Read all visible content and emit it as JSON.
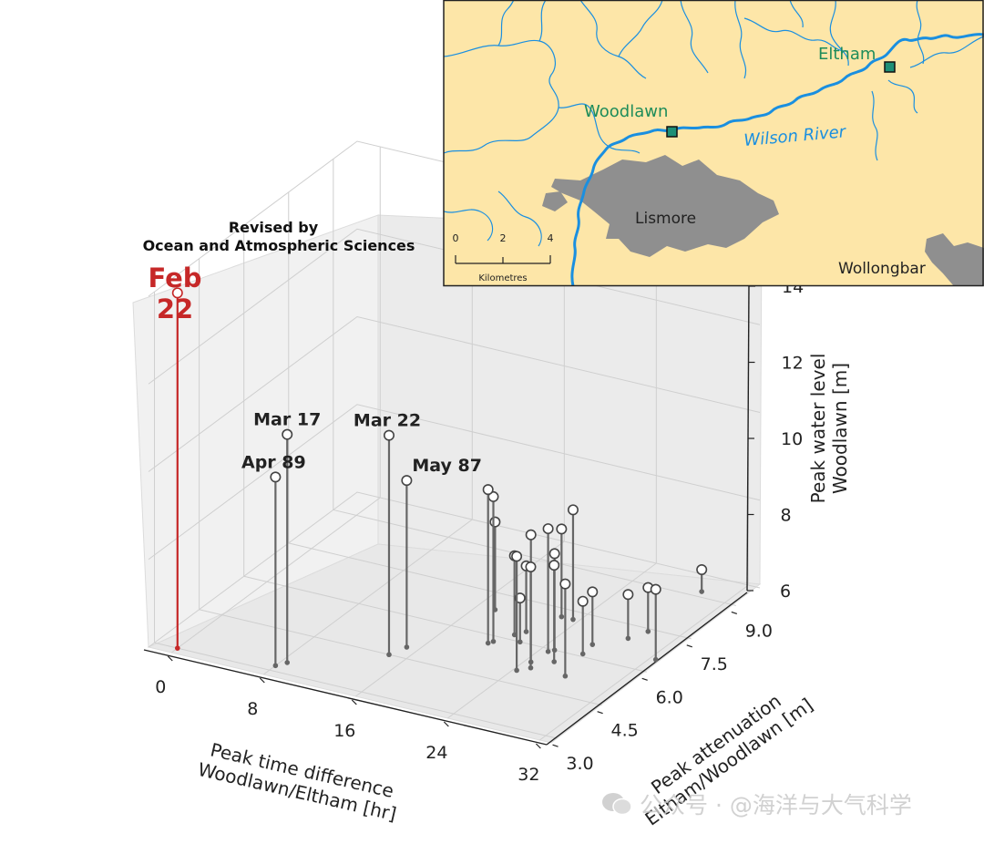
{
  "chart_data": {
    "type": "scatter",
    "subtype": "3d-stem",
    "header": [
      "Revised by",
      "Ocean and Atmospheric Sciences"
    ],
    "xlabel": [
      "Peak time difference",
      "Woodlawn/Eltham [hr]"
    ],
    "ylabel": [
      "Peak attenuation",
      "Eltham/Woodlawn [m]"
    ],
    "zlabel": [
      "Peak water level",
      "Woodlawn [m]"
    ],
    "xlim": [
      -2,
      33
    ],
    "ylim": [
      2.8,
      9.8
    ],
    "zlim": [
      6,
      14
    ],
    "x_ticks": [
      "0",
      "8",
      "16",
      "24",
      "32"
    ],
    "y_ticks": [
      "3.0",
      "4.5",
      "6.0",
      "7.5",
      "9.0"
    ],
    "z_ticks": [
      "6",
      "8",
      "10",
      "12",
      "14"
    ],
    "grid": true,
    "highlight": {
      "label": [
        "Feb",
        "22"
      ],
      "color": "#c62828",
      "point": {
        "x": 0,
        "y": 3.0,
        "z": 14.1
      }
    },
    "annotations": [
      {
        "label": "Mar 17",
        "x": 8.5,
        "y": 3.4,
        "z": 11.2
      },
      {
        "label": "Apr 89",
        "x": 8,
        "y": 3.2,
        "z": 10.3
      },
      {
        "label": "Mar 22",
        "x": 14.5,
        "y": 4.5,
        "z": 11.0
      },
      {
        "label": "May 87",
        "x": 15,
        "y": 4.9,
        "z": 9.8
      }
    ],
    "points": [
      {
        "x": 20,
        "y": 5.7,
        "z": 9.5
      },
      {
        "x": 20.2,
        "y": 5.8,
        "z": 9.3
      },
      {
        "x": 17.5,
        "y": 6.9,
        "z": 8.0
      },
      {
        "x": 21,
        "y": 6.2,
        "z": 7.8
      },
      {
        "x": 21.5,
        "y": 6.4,
        "z": 7.5
      },
      {
        "x": 22,
        "y": 6.0,
        "z": 7.0
      },
      {
        "x": 22.5,
        "y": 7.2,
        "z": 8.0
      },
      {
        "x": 23.5,
        "y": 7.2,
        "z": 8.5
      },
      {
        "x": 24.3,
        "y": 5.0,
        "z": 8.6
      },
      {
        "x": 24.5,
        "y": 5.4,
        "z": 8.9
      },
      {
        "x": 24.7,
        "y": 5.9,
        "z": 8.8
      },
      {
        "x": 25,
        "y": 6.0,
        "z": 8.2
      },
      {
        "x": 25,
        "y": 5.2,
        "z": 8.3
      },
      {
        "x": 26,
        "y": 5.6,
        "z": 8.2
      },
      {
        "x": 27,
        "y": 6.5,
        "z": 7.2
      },
      {
        "x": 27.2,
        "y": 6.1,
        "z": 7.2
      },
      {
        "x": 28,
        "y": 5.2,
        "z": 8.1
      },
      {
        "x": 28.8,
        "y": 7.0,
        "z": 7.0
      },
      {
        "x": 29.5,
        "y": 7.4,
        "z": 7.0
      },
      {
        "x": 29.5,
        "y": 9.2,
        "z": 6.5
      },
      {
        "x": 32.5,
        "y": 6.5,
        "z": 7.6
      }
    ]
  },
  "map": {
    "labels": {
      "eltham": "Eltham",
      "woodlawn": "Woodlawn",
      "river": "Wilson River",
      "lismore": "Lismore",
      "wollongbar": "Wollongbar"
    },
    "scale": {
      "ticks": [
        "0",
        "2",
        "4"
      ],
      "unit": "Kilometres"
    },
    "colors": {
      "land": "#fde6a8",
      "river": "#1a8fe0",
      "urban": "#8f8f8f",
      "site": "#1e8f76",
      "site_text": "#1e8c5a"
    }
  },
  "watermark": "公众号 · @海洋与大气科学"
}
